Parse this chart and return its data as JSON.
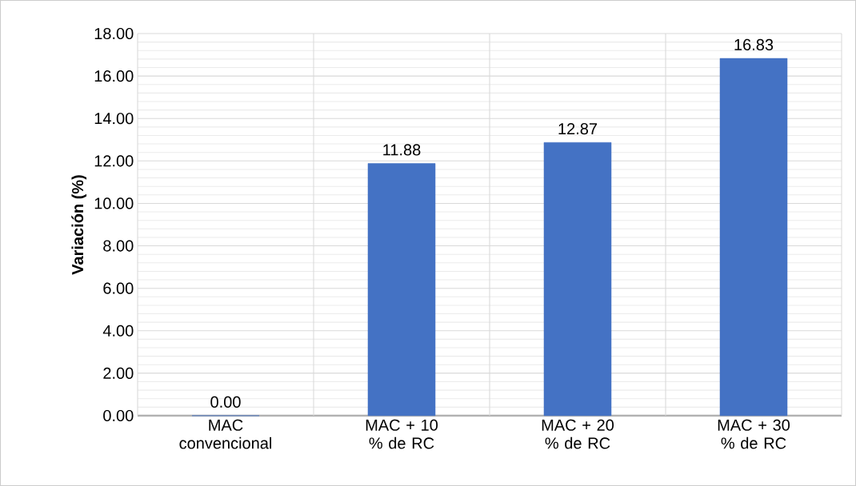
{
  "chart_data": {
    "type": "bar",
    "ylabel": "Variación (%)",
    "categories": [
      "MAC convencional",
      "MAC + 10 % de RC",
      "MAC + 20 % de RC",
      "MAC + 30 % de RC"
    ],
    "values": [
      0,
      11.88,
      12.87,
      16.83
    ],
    "color": "#4472c4",
    "value_labels": [
      "0.00",
      "11.88",
      "12.87",
      "16.83"
    ],
    "ylim": [
      0,
      18
    ],
    "yticks": [
      {
        "value": 0,
        "label": "0.00"
      },
      {
        "value": 2,
        "label": "2.00"
      },
      {
        "value": 4,
        "label": "4.00"
      },
      {
        "value": 6,
        "label": "6.00"
      },
      {
        "value": 8,
        "label": "8.00"
      },
      {
        "value": 10,
        "label": "10.00"
      },
      {
        "value": 12,
        "label": "12.00"
      },
      {
        "value": 14,
        "label": "14.00"
      },
      {
        "value": 16,
        "label": "16.00"
      },
      {
        "value": 18,
        "label": "18.00"
      }
    ],
    "grid": true
  }
}
